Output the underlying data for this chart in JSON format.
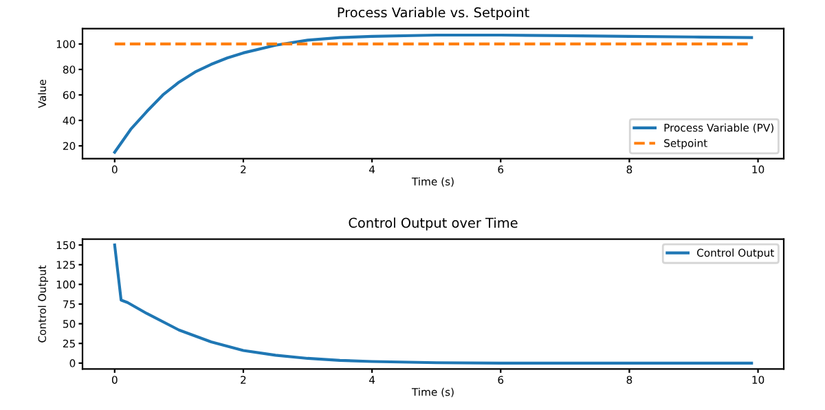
{
  "chart_data": [
    {
      "type": "line",
      "title": "Process Variable vs. Setpoint",
      "xlabel": "Time (s)",
      "ylabel": "Value",
      "x": [
        0,
        0.25,
        0.5,
        0.75,
        1,
        1.25,
        1.5,
        1.75,
        2,
        2.5,
        3,
        3.5,
        4,
        5,
        6,
        7,
        8,
        9,
        9.9
      ],
      "series": [
        {
          "name": "Process Variable (PV)",
          "color": "#1f77b4",
          "line_style": "solid",
          "values": [
            15,
            33,
            47,
            60,
            70,
            78,
            84,
            89,
            93,
            99,
            103,
            105,
            106,
            107,
            107,
            106.5,
            106,
            105.5,
            105
          ]
        },
        {
          "name": "Setpoint",
          "color": "#ff7f0e",
          "line_style": "dashed",
          "x": [
            0,
            9.9
          ],
          "values": [
            100,
            100
          ]
        }
      ],
      "xlim": [
        -0.5,
        10.4
      ],
      "xticks": [
        0,
        2,
        4,
        6,
        8,
        10
      ],
      "ylim": [
        10,
        112
      ],
      "yticks": [
        20,
        40,
        60,
        80,
        100
      ],
      "legend": "bottom right",
      "grid": false
    },
    {
      "type": "line",
      "title": "Control Output over Time",
      "xlabel": "Time (s)",
      "ylabel": "Control Output",
      "x": [
        0,
        0.1,
        0.2,
        0.5,
        1,
        1.5,
        2,
        2.5,
        3,
        3.5,
        4,
        5,
        6,
        7,
        8,
        9,
        9.9
      ],
      "series": [
        {
          "name": "Control Output",
          "color": "#1f77b4",
          "line_style": "solid",
          "values": [
            150,
            80,
            77,
            63,
            42,
            27,
            16,
            10,
            6,
            3.5,
            2,
            0.5,
            0,
            0,
            0,
            0,
            0
          ]
        }
      ],
      "xlim": [
        -0.5,
        10.4
      ],
      "xticks": [
        0,
        2,
        4,
        6,
        8,
        10
      ],
      "ylim": [
        -7.5,
        157.5
      ],
      "yticks": [
        0,
        25,
        50,
        75,
        100,
        125,
        150
      ],
      "legend": "top right",
      "grid": false
    }
  ]
}
